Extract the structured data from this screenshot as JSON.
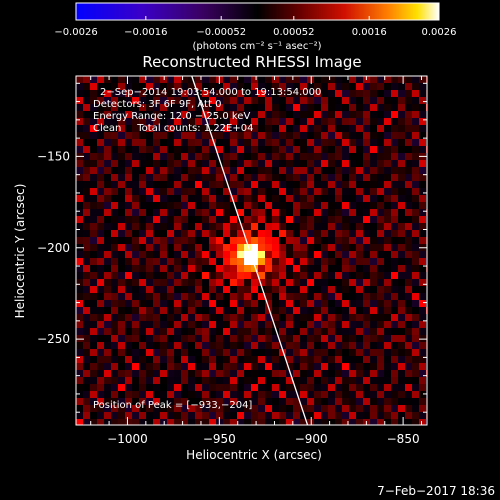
{
  "chart_data": {
    "type": "heatmap",
    "title": "Reconstructed RHESSI Image",
    "xlabel": "Heliocentric X (arcsec)",
    "ylabel": "Heliocentric Y (arcsec)",
    "xlim": [
      -1028,
      -837
    ],
    "ylim": [
      -297,
      -106
    ],
    "x_ticks": [
      -1000,
      -950,
      -900,
      -850
    ],
    "y_ticks": [
      -150,
      -200,
      -250
    ],
    "x_tick_labels": [
      "−1000",
      "−950",
      "−900",
      "−850"
    ],
    "y_tick_labels": [
      "−150",
      "−200",
      "−250"
    ],
    "peak": {
      "x": -933,
      "y": -204
    },
    "limb_line": [
      [
        -965,
        -106
      ],
      [
        -902,
        -297
      ]
    ],
    "colorbar": {
      "min": -0.0026,
      "max": 0.0026,
      "ticks": [
        -0.0026,
        -0.0016,
        -0.00052,
        0.00052,
        0.0016,
        0.0026
      ],
      "tick_labels": [
        "−0.0026",
        "−0.0016",
        "−0.00052",
        "0.00052",
        "0.0016",
        "0.0026"
      ],
      "units_label": "(photons cm⁻² s⁻¹ asec⁻²)"
    },
    "annotations": [
      "2−Sep−2014 19:03:54.000 to 19:13:54.000",
      "Detectors: 3F 6F 9F, Att 0",
      "Energy Range: 12.0 − 25.0 keV",
      "Clean     Total counts: 1.22E+04"
    ],
    "peak_label": "Position of Peak = [−933,−204]",
    "footer_date": "7−Feb−2017 18:36"
  },
  "colors": {
    "background": "#000000",
    "axes": "#ffffff",
    "limb": "#ffffff"
  }
}
